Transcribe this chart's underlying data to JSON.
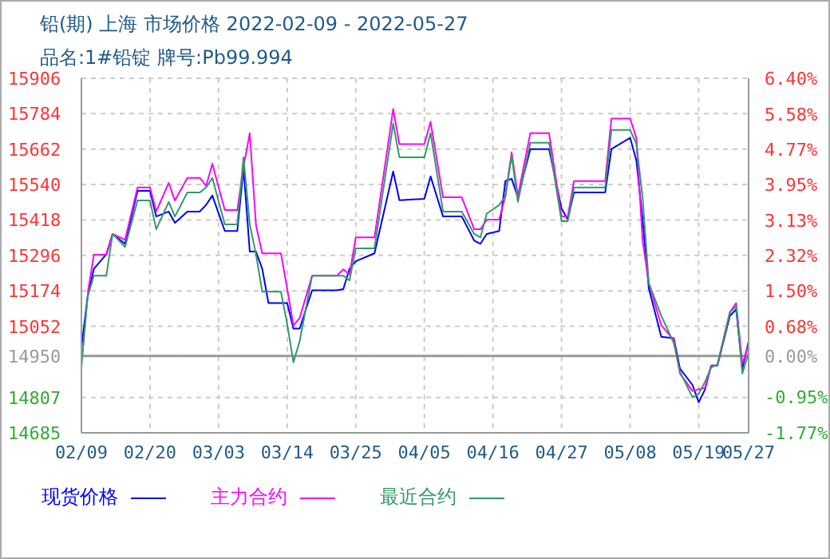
{
  "chart_data": {
    "type": "line",
    "title": "铅(期) 上海 市场价格 2022-02-09 - 2022-05-27",
    "subtitle": "品名:1#铅锭 牌号:Pb99.994",
    "x": [
      "2022-02-09",
      "2022-02-10",
      "2022-02-11",
      "2022-02-13",
      "2022-02-14",
      "2022-02-16",
      "2022-02-18",
      "2022-02-20",
      "2022-02-21",
      "2022-02-23",
      "2022-02-24",
      "2022-02-26",
      "2022-02-28",
      "2022-03-01",
      "2022-03-02",
      "2022-03-04",
      "2022-03-06",
      "2022-03-07",
      "2022-03-08",
      "2022-03-09",
      "2022-03-10",
      "2022-03-11",
      "2022-03-13",
      "2022-03-14",
      "2022-03-15",
      "2022-03-16",
      "2022-03-18",
      "2022-03-22",
      "2022-03-23",
      "2022-03-24",
      "2022-03-25",
      "2022-03-28",
      "2022-03-31",
      "2022-04-01",
      "2022-04-05",
      "2022-04-06",
      "2022-04-08",
      "2022-04-11",
      "2022-04-13",
      "2022-04-14",
      "2022-04-15",
      "2022-04-17",
      "2022-04-18",
      "2022-04-19",
      "2022-04-20",
      "2022-04-22",
      "2022-04-25",
      "2022-04-27",
      "2022-04-28",
      "2022-04-29",
      "2022-05-04",
      "2022-05-05",
      "2022-05-08",
      "2022-05-09",
      "2022-05-10",
      "2022-05-11",
      "2022-05-13",
      "2022-05-15",
      "2022-05-16",
      "2022-05-18",
      "2022-05-19",
      "2022-05-20",
      "2022-05-21",
      "2022-05-22",
      "2022-05-24",
      "2022-05-25",
      "2022-05-26",
      "2022-05-27"
    ],
    "series": [
      {
        "name": "现货价格",
        "color": "#0000ff",
        "values": [
          14977,
          15154,
          15250,
          15300,
          15370,
          15336,
          15518,
          15518,
          15430,
          15447,
          15408,
          15447,
          15447,
          15470,
          15502,
          15380,
          15380,
          15596,
          15309,
          15309,
          15250,
          15132,
          15132,
          15132,
          15044,
          15044,
          15176,
          15176,
          15180,
          15250,
          15276,
          15303,
          15585,
          15486,
          15491,
          15568,
          15430,
          15430,
          15347,
          15336,
          15370,
          15380,
          15552,
          15560,
          15496,
          15662,
          15662,
          15458,
          15419,
          15513,
          15513,
          15662,
          15701,
          15623,
          15419,
          15182,
          15016,
          15011,
          14906,
          14850,
          14790,
          14834,
          14917,
          14917,
          15088,
          15110,
          14906,
          15000
        ]
      },
      {
        "name": "主力合约",
        "color": "#ff00ff",
        "values": [
          null,
          15165,
          15298,
          15298,
          15370,
          15350,
          15530,
          15530,
          15447,
          15546,
          15485,
          15563,
          15563,
          15535,
          15612,
          15452,
          15452,
          15600,
          15717,
          15400,
          15303,
          15303,
          15303,
          15182,
          15055,
          15080,
          15226,
          15226,
          15248,
          15230,
          15358,
          15358,
          15800,
          15679,
          15679,
          15756,
          15496,
          15496,
          15386,
          15386,
          15419,
          15419,
          15500,
          15651,
          15500,
          15717,
          15717,
          15430,
          15430,
          15552,
          15552,
          15767,
          15767,
          15700,
          15347,
          15200,
          15055,
          15005,
          14889,
          14829,
          14835,
          14840,
          14917,
          14917,
          15100,
          15132,
          14922,
          14989
        ]
      },
      {
        "name": "最近合约",
        "color": "#339966",
        "values": [
          14911,
          15154,
          15226,
          15226,
          15370,
          15325,
          15485,
          15485,
          15386,
          15480,
          15430,
          15513,
          15513,
          15530,
          15563,
          15403,
          15403,
          15634,
          15403,
          15300,
          15171,
          15171,
          15171,
          15060,
          14928,
          15000,
          15226,
          15226,
          15226,
          15210,
          15320,
          15320,
          15750,
          15634,
          15634,
          15717,
          15447,
          15447,
          15370,
          15358,
          15440,
          15469,
          15500,
          15640,
          15480,
          15684,
          15684,
          15414,
          15414,
          15530,
          15530,
          15728,
          15728,
          15680,
          15496,
          15200,
          15088,
          14994,
          14895,
          14807,
          14820,
          14860,
          14910,
          14920,
          15100,
          15121,
          14889,
          14961
        ]
      }
    ],
    "xlim": [
      "2022-02-09",
      "2022-05-27"
    ],
    "xticks": [
      {
        "value": "2022-02-09",
        "label": "02/09"
      },
      {
        "value": "2022-02-20",
        "label": "02/20"
      },
      {
        "value": "2022-03-03",
        "label": "03/03"
      },
      {
        "value": "2022-03-14",
        "label": "03/14"
      },
      {
        "value": "2022-03-25",
        "label": "03/25"
      },
      {
        "value": "2022-04-05",
        "label": "04/05"
      },
      {
        "value": "2022-04-16",
        "label": "04/16"
      },
      {
        "value": "2022-04-27",
        "label": "04/27"
      },
      {
        "value": "2022-05-08",
        "label": "05/08"
      },
      {
        "value": "2022-05-19",
        "label": "05/19"
      },
      {
        "value": "2022-05-27",
        "label": "05/27"
      }
    ],
    "ylim": [
      14685,
      15906
    ],
    "yticks": [
      14685,
      14807,
      14950,
      15052,
      15174,
      15296,
      15418,
      15540,
      15662,
      15784,
      15906
    ],
    "y2lim": [
      -1.77,
      6.4
    ],
    "y2ticks": [
      {
        "value": -1.77,
        "label": "-1.77%"
      },
      {
        "value": -0.95,
        "label": "-0.95%"
      },
      {
        "value": 0,
        "label": "0.00%"
      },
      {
        "value": 0.68,
        "label": "0.68%"
      },
      {
        "value": 1.5,
        "label": "1.50%"
      },
      {
        "value": 2.32,
        "label": "2.32%"
      },
      {
        "value": 3.13,
        "label": "3.13%"
      },
      {
        "value": 3.95,
        "label": "3.95%"
      },
      {
        "value": 4.77,
        "label": "4.77%"
      },
      {
        "value": 5.58,
        "label": "5.58%"
      },
      {
        "value": 6.4,
        "label": "6.40%"
      }
    ],
    "ref_lines": [
      {
        "axis": "y",
        "value": 14950,
        "color": "#999999"
      }
    ],
    "grid": true,
    "legend": "bottom",
    "marker": "none",
    "line_style": "solid"
  }
}
